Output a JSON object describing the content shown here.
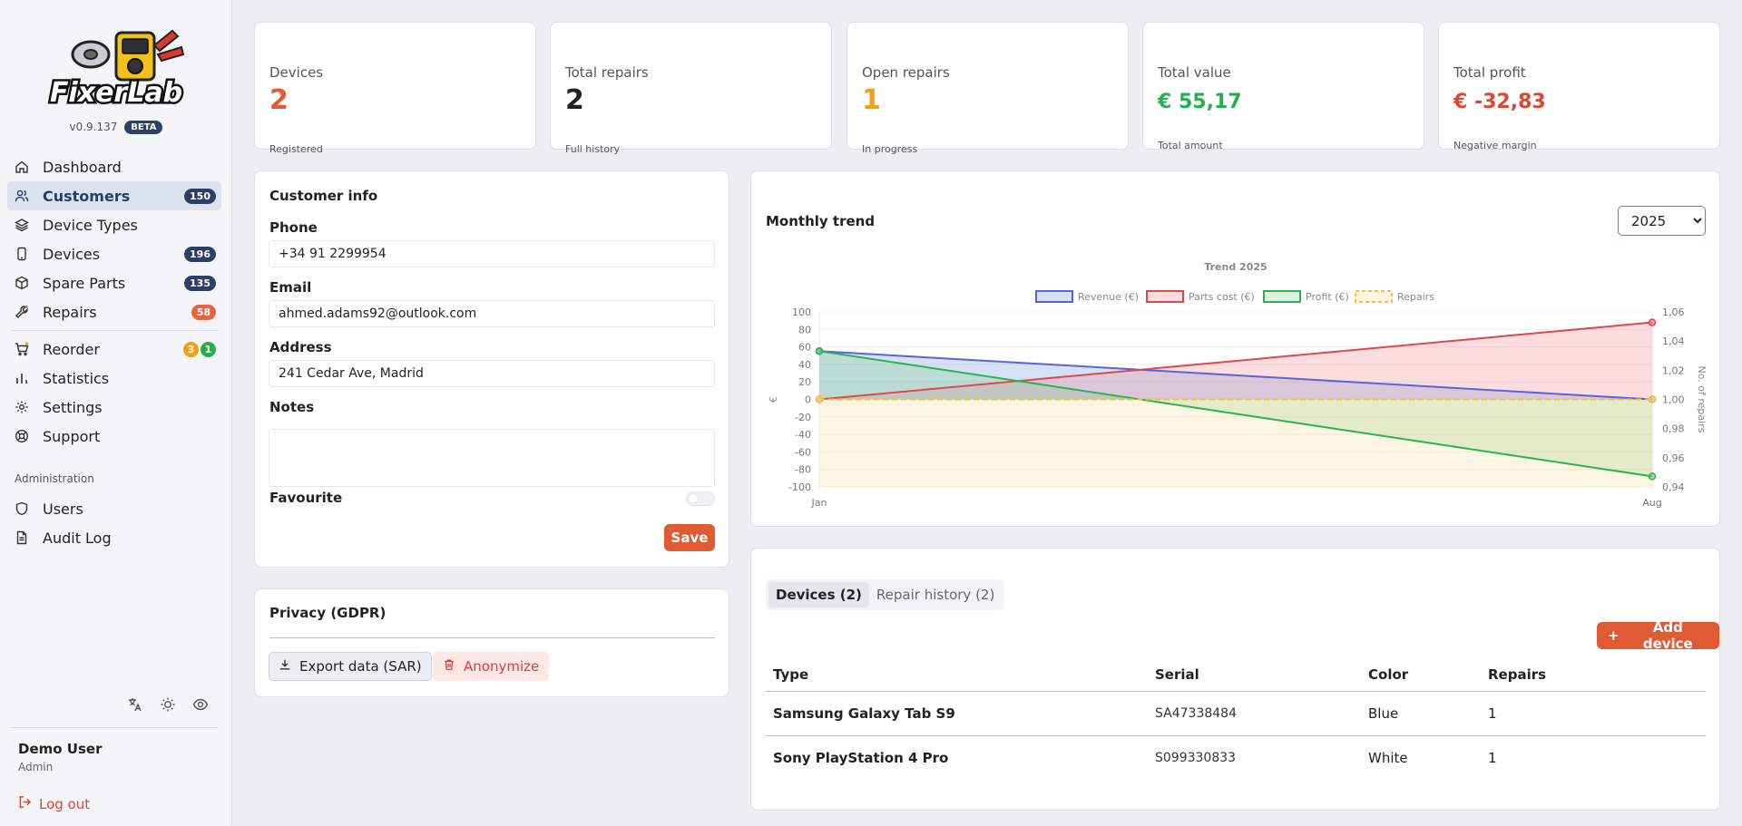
{
  "brand": {
    "logo_text": "FixerLab",
    "version": "v0.9.137",
    "beta": "BETA"
  },
  "nav": [
    {
      "label": "Dashboard",
      "icon": "home-icon"
    },
    {
      "label": "Customers",
      "icon": "users-icon",
      "badge": "150",
      "active": true
    },
    {
      "label": "Device Types",
      "icon": "layers-icon"
    },
    {
      "label": "Devices",
      "icon": "phone-icon",
      "badge": "196"
    },
    {
      "label": "Spare Parts",
      "icon": "box-icon",
      "badge": "135"
    },
    {
      "label": "Repairs",
      "icon": "wrench-icon",
      "badge": "58"
    },
    {
      "label": "Reorder",
      "icon": "cart-icon",
      "badge": "3",
      "badge2": "1"
    },
    {
      "label": "Statistics",
      "icon": "chart-icon"
    },
    {
      "label": "Settings",
      "icon": "gear-icon"
    },
    {
      "label": "Support",
      "icon": "lifebuoy-icon"
    }
  ],
  "admin": {
    "section_label": "Administration",
    "items": [
      {
        "label": "Users"
      },
      {
        "label": "Audit Log"
      }
    ]
  },
  "user": {
    "name": "Demo User",
    "role": "Admin",
    "logout": "Log out"
  },
  "stats": [
    {
      "label": "Devices",
      "value": "2",
      "sub": "Registered",
      "color": "#e05a34"
    },
    {
      "label": "Total repairs",
      "value": "2",
      "sub": "Full history",
      "color": "#222222"
    },
    {
      "label": "Open repairs",
      "value": "1",
      "sub": "In progress",
      "color": "#f2a012"
    },
    {
      "label": "Total value",
      "value": "€ 55,17",
      "sub": "Total amount",
      "color": "#22b14c"
    },
    {
      "label": "Total profit",
      "value": "€ -32,83",
      "sub": "Negative margin",
      "color": "#e0452f"
    }
  ],
  "customer": {
    "title": "Customer info",
    "phone_label": "Phone",
    "phone": "+34 91 2299954",
    "email_label": "Email",
    "email": "ahmed.adams92@outlook.com",
    "address_label": "Address",
    "address": "241 Cedar Ave, Madrid",
    "notes_label": "Notes",
    "notes": "",
    "favourite_label": "Favourite",
    "save_label": "Save"
  },
  "privacy": {
    "title": "Privacy (GDPR)",
    "export_label": "Export data (SAR)",
    "anonymize_label": "Anonymize"
  },
  "trend": {
    "title": "Monthly trend",
    "year": "2025",
    "year_options": [
      "2025"
    ]
  },
  "chart_data": {
    "type": "line",
    "title": "Trend 2025",
    "x": [
      "Jan",
      "Aug"
    ],
    "ylabel": "€",
    "y2label": "No. of repairs",
    "ylim": [
      -100,
      100
    ],
    "y2lim": [
      0.94,
      1.06
    ],
    "y_ticks": [
      "100",
      "80",
      "60",
      "40",
      "20",
      "0",
      "-20",
      "-40",
      "-60",
      "-80",
      "-100"
    ],
    "y2_ticks": [
      "1,06",
      "1,04",
      "1,02",
      "1,00",
      "0,98",
      "0,96",
      "0,94"
    ],
    "legend_position": "top",
    "grid": true,
    "series": [
      {
        "name": "Revenue (€)",
        "values": [
          55.17,
          0
        ],
        "color": "#5b62e0",
        "fill": "rgba(108,150,214,0.28)",
        "axis": "left"
      },
      {
        "name": "Parts cost (€)",
        "values": [
          0,
          88
        ],
        "color": "#e0474c",
        "fill": "rgba(240,120,130,0.25)",
        "axis": "left"
      },
      {
        "name": "Profit (€)",
        "values": [
          55.17,
          -88
        ],
        "color": "#2bb34f",
        "fill": "rgba(110,200,120,0.25)",
        "axis": "left"
      },
      {
        "name": "Repairs",
        "values": [
          1,
          1
        ],
        "color": "#f0c040",
        "fill": "rgba(250,220,140,0.25)",
        "axis": "right",
        "dashed": true
      }
    ]
  },
  "devices": {
    "tab_devices": "Devices (2)",
    "tab_history": "Repair history (2)",
    "add_label": "Add device",
    "columns": [
      "Type",
      "Serial",
      "Color",
      "Repairs"
    ],
    "rows": [
      {
        "type": "Samsung Galaxy Tab S9",
        "serial": "SA47338484",
        "color": "Blue",
        "repairs": "1"
      },
      {
        "type": "Sony PlayStation 4 Pro",
        "serial": "S099330833",
        "color": "White",
        "repairs": "1"
      }
    ]
  }
}
